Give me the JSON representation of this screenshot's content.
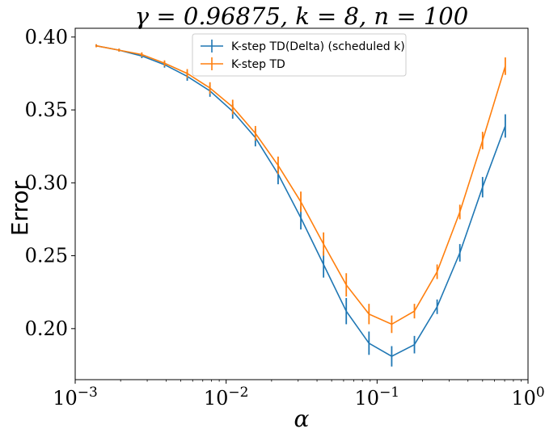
{
  "chart_data": {
    "type": "line",
    "title": "γ = 0.96875, k = 8, n = 100",
    "xlabel": "α",
    "ylabel": "Error",
    "xscale": "log",
    "xlim": [
      0.001,
      1
    ],
    "ylim": [
      0.165,
      0.406
    ],
    "x_ticks": [
      {
        "value": 0.001,
        "base": "10",
        "exp": "−3"
      },
      {
        "value": 0.01,
        "base": "10",
        "exp": "−2"
      },
      {
        "value": 0.1,
        "base": "10",
        "exp": "−1"
      },
      {
        "value": 1,
        "base": "10",
        "exp": "0"
      }
    ],
    "y_ticks": [
      {
        "value": 0.2,
        "label": "0.20"
      },
      {
        "value": 0.25,
        "label": "0.25"
      },
      {
        "value": 0.3,
        "label": "0.30"
      },
      {
        "value": 0.35,
        "label": "0.35"
      },
      {
        "value": 0.4,
        "label": "0.40"
      }
    ],
    "grid": false,
    "legend_position": "top-center",
    "x": [
      0.001379,
      0.001953,
      0.002762,
      0.003906,
      0.005524,
      0.007813,
      0.011049,
      0.015625,
      0.022097,
      0.03125,
      0.044194,
      0.0625,
      0.088388,
      0.125,
      0.176777,
      0.25,
      0.353553,
      0.5,
      0.707107
    ],
    "series": [
      {
        "name": "K-step TD(Delta) (scheduled k)",
        "color": "#1f77b4",
        "values": [
          0.394,
          0.391,
          0.387,
          0.381,
          0.373,
          0.363,
          0.349,
          0.331,
          0.306,
          0.276,
          0.244,
          0.212,
          0.19,
          0.181,
          0.189,
          0.215,
          0.252,
          0.297,
          0.339
        ],
        "errors": [
          0.001,
          0.001,
          0.0015,
          0.002,
          0.003,
          0.004,
          0.005,
          0.006,
          0.007,
          0.008,
          0.009,
          0.009,
          0.008,
          0.007,
          0.006,
          0.005,
          0.006,
          0.007,
          0.008
        ]
      },
      {
        "name": "K-step TD",
        "color": "#ff7f0e",
        "values": [
          0.394,
          0.391,
          0.388,
          0.382,
          0.375,
          0.365,
          0.352,
          0.334,
          0.312,
          0.287,
          0.258,
          0.23,
          0.21,
          0.203,
          0.212,
          0.239,
          0.28,
          0.329,
          0.38
        ],
        "errors": [
          0.001,
          0.001,
          0.0015,
          0.002,
          0.003,
          0.004,
          0.005,
          0.005,
          0.006,
          0.007,
          0.008,
          0.008,
          0.007,
          0.006,
          0.005,
          0.005,
          0.005,
          0.006,
          0.006
        ]
      }
    ]
  }
}
